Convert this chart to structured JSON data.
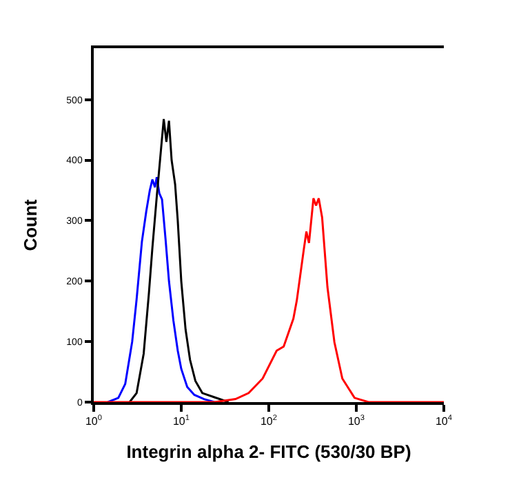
{
  "chart_data": {
    "type": "line",
    "xlabel": "Integrin alpha 2- FITC (530/30 BP)",
    "ylabel": "Count",
    "log": "x",
    "xlim": [
      1,
      10000
    ],
    "xticks": [
      {
        "value": 1,
        "label": "10$^{0}$"
      },
      {
        "value": 10,
        "label": "10$^{1}$"
      },
      {
        "value": 100,
        "label": "10$^{2}$"
      },
      {
        "value": 1000,
        "label": "10$^{3}$"
      },
      {
        "value": 10000,
        "label": "10$^{4}$"
      }
    ],
    "ylim": [
      0,
      585
    ],
    "yticks": [
      0,
      100,
      200,
      300,
      400,
      500
    ],
    "marker": "none",
    "line_style": "solid",
    "series": [
      {
        "color": "#0000ff",
        "x": [
          1.45,
          1.91,
          2.29,
          2.75,
          3.09,
          3.55,
          3.98,
          4.37,
          4.68,
          5.01,
          5.25,
          5.62,
          6.03,
          6.61,
          7.24,
          8.13,
          9.12,
          10,
          11.7,
          14.1,
          18.2,
          24.0
        ],
        "values": [
          0,
          7,
          30,
          100,
          170,
          265,
          315,
          350,
          368,
          355,
          372,
          345,
          335,
          270,
          200,
          135,
          85,
          55,
          25,
          12,
          5,
          0
        ]
      },
      {
        "color": "#000000",
        "x": [
          2.57,
          3.09,
          3.72,
          4.27,
          4.68,
          5.25,
          5.89,
          6.31,
          6.76,
          7.24,
          7.76,
          8.51,
          9.12,
          10,
          11.2,
          12.6,
          14.5,
          17.4,
          24.0,
          34.7
        ],
        "values": [
          0,
          15,
          80,
          180,
          255,
          340,
          420,
          468,
          430,
          465,
          400,
          360,
          300,
          200,
          120,
          70,
          35,
          15,
          8,
          0
        ]
      },
      {
        "color": "#ff0000",
        "x": [
          1,
          24.0,
          41.7,
          58.9,
          85.1,
          123,
          148,
          191,
          209,
          251,
          269,
          288,
          324,
          347,
          372,
          407,
          468,
          562,
          692,
          955,
          1380,
          10000
        ],
        "values": [
          0,
          0,
          5,
          15,
          39,
          85,
          92,
          138,
          168,
          252,
          282,
          263,
          337,
          325,
          337,
          305,
          190,
          99,
          39,
          7,
          0,
          0
        ]
      }
    ]
  }
}
